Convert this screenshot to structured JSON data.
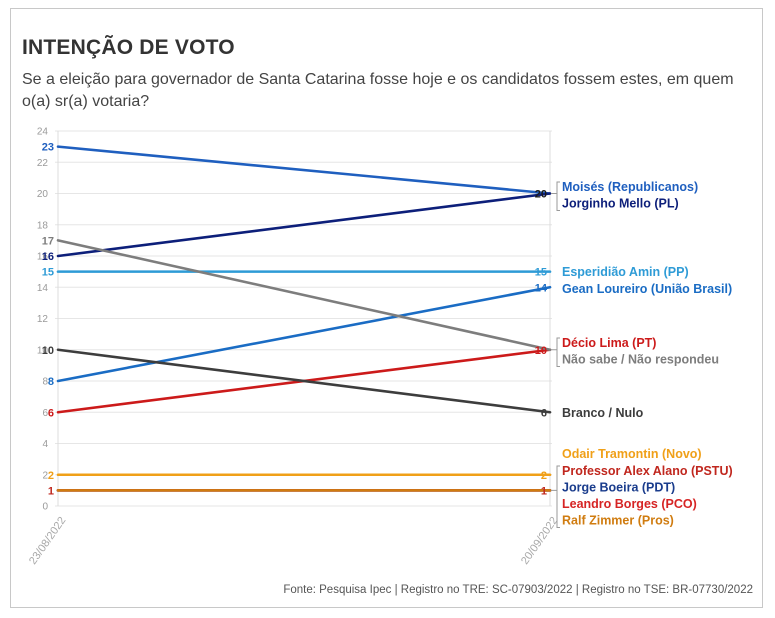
{
  "title": "INTENÇÃO DE VOTO",
  "subtitle": "Se a eleição para governador de Santa Catarina fosse hoje e os candidatos fossem estes, em quem o(a) sr(a) votaria?",
  "source": "Fonte: Pesquisa Ipec | Registro no TRE: SC-07903/2022 | Registro no TSE: BR-07730/2022",
  "chart_data": {
    "type": "line",
    "x": [
      "23/08/2022",
      "20/09/2022"
    ],
    "ylim": [
      0,
      24
    ],
    "yticks": [
      0,
      2,
      4,
      6,
      8,
      10,
      12,
      14,
      16,
      18,
      20,
      22,
      24
    ],
    "grid": true,
    "series": [
      {
        "name": "Moisés (Republicanos)",
        "values": [
          23,
          20
        ],
        "color": "#1f5fbf"
      },
      {
        "name": "Jorginho Mello (PL)",
        "values": [
          16,
          20
        ],
        "color": "#0d1f7a"
      },
      {
        "name": "Esperidião Amin (PP)",
        "values": [
          15,
          15
        ],
        "color": "#2e9bd6"
      },
      {
        "name": "Gean Loureiro (União Brasil)",
        "values": [
          8,
          14
        ],
        "color": "#1a6cc4"
      },
      {
        "name": "Décio Lima (PT)",
        "values": [
          6,
          10
        ],
        "color": "#cc1a1a"
      },
      {
        "name": "Não sabe / Não respondeu",
        "values": [
          17,
          10
        ],
        "color": "#7d7d7d"
      },
      {
        "name": "Branco / Nulo",
        "values": [
          10,
          6
        ],
        "color": "#3d3d3d"
      },
      {
        "name": "Odair Tramontin (Novo)",
        "values": [
          2,
          2
        ],
        "color": "#f0a018"
      },
      {
        "name": "Professor Alex Alano (PSTU)",
        "values": [
          1,
          1
        ],
        "color": "#c0271e"
      },
      {
        "name": "Jorge Boeira (PDT)",
        "values": [
          1,
          1
        ],
        "color": "#1a3c8c"
      },
      {
        "name": "Leandro Borges (PCO)",
        "values": [
          1,
          1
        ],
        "color": "#d62424"
      },
      {
        "name": "Ralf Zimmer (Pros)",
        "values": [
          1,
          1
        ],
        "color": "#d07c10"
      }
    ],
    "end_groups": [
      {
        "value_label": "20",
        "names": [
          "Moisés (Republicanos)",
          "Jorginho Mello (PL)"
        ]
      },
      {
        "value_label": "15",
        "names": [
          "Esperidião Amin (PP)"
        ]
      },
      {
        "value_label": "14",
        "names": [
          "Gean Loureiro (União Brasil)"
        ]
      },
      {
        "value_label": "10",
        "names": [
          "Décio Lima (PT)",
          "Não sabe / Não respondeu"
        ]
      },
      {
        "value_label": "6",
        "names": [
          "Branco / Nulo"
        ]
      },
      {
        "value_label": "2",
        "names": [
          "Odair Tramontin (Novo)"
        ]
      },
      {
        "value_label": "1",
        "names": [
          "Professor Alex Alano (PSTU)",
          "Jorge Boeira (PDT)",
          "Leandro Borges (PCO)",
          "Ralf Zimmer (Pros)"
        ]
      }
    ],
    "start_labels": [
      "23",
      "17",
      "16",
      "15",
      "10",
      "8",
      "6",
      "2",
      "1"
    ]
  }
}
